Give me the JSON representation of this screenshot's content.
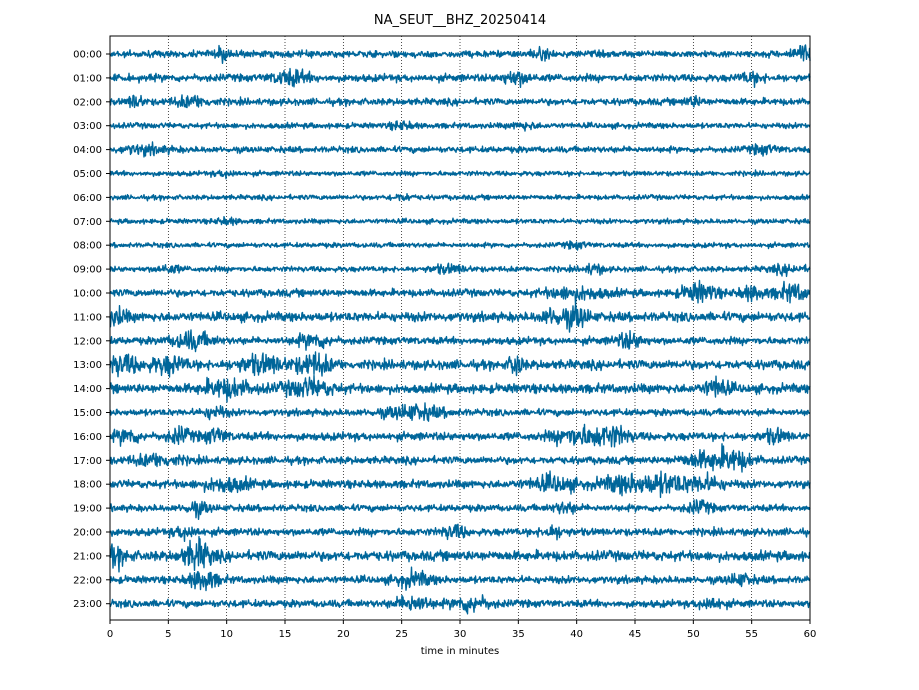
{
  "chart_data": {
    "type": "line",
    "title": "NA_SEUT__BHZ_20250414",
    "xlabel": "time in minutes",
    "ylabel": "",
    "xlim": [
      0,
      60
    ],
    "x_ticks": [
      0,
      5,
      10,
      15,
      20,
      25,
      30,
      35,
      40,
      45,
      50,
      55,
      60
    ],
    "grid": "vertical dotted lines every 5 minutes",
    "trace_color": "#00669a",
    "rows": [
      {
        "label": "00:00",
        "noise": 0.55,
        "events": [
          [
            9.8,
            0.8,
            1.6
          ],
          [
            59.3,
            1.0,
            2.2
          ],
          [
            37.0,
            1.0,
            1.2
          ]
        ]
      },
      {
        "label": "01:00",
        "noise": 0.6,
        "events": [
          [
            15.5,
            1.5,
            1.9
          ],
          [
            34.8,
            1.2,
            1.8
          ],
          [
            55.0,
            1.0,
            1.3
          ]
        ]
      },
      {
        "label": "02:00",
        "noise": 0.55,
        "events": [
          [
            2.2,
            0.6,
            2.0
          ],
          [
            7.0,
            1.5,
            1.6
          ],
          [
            50.0,
            0.8,
            1.3
          ]
        ]
      },
      {
        "label": "03:00",
        "noise": 0.45,
        "events": [
          [
            25.0,
            1.0,
            1.3
          ],
          [
            35.5,
            1.0,
            1.2
          ]
        ]
      },
      {
        "label": "04:00",
        "noise": 0.5,
        "events": [
          [
            3.0,
            2.0,
            1.3
          ],
          [
            56.0,
            1.2,
            1.3
          ]
        ]
      },
      {
        "label": "05:00",
        "noise": 0.4,
        "events": [
          [
            10.0,
            1.0,
            1.2
          ]
        ]
      },
      {
        "label": "06:00",
        "noise": 0.4,
        "events": [
          [
            25.0,
            1.0,
            1.2
          ]
        ]
      },
      {
        "label": "07:00",
        "noise": 0.4,
        "events": [
          [
            10.0,
            1.0,
            1.2
          ]
        ]
      },
      {
        "label": "08:00",
        "noise": 0.4,
        "events": [
          [
            40.0,
            1.0,
            1.2
          ]
        ]
      },
      {
        "label": "09:00",
        "noise": 0.45,
        "events": [
          [
            5.0,
            1.0,
            1.4
          ],
          [
            29.0,
            1.5,
            1.4
          ],
          [
            41.5,
            0.8,
            1.8
          ],
          [
            58.0,
            1.5,
            1.3
          ]
        ]
      },
      {
        "label": "10:00",
        "noise": 0.6,
        "events": [
          [
            40.0,
            2.5,
            1.6
          ],
          [
            50.5,
            1.5,
            2.4
          ],
          [
            58.5,
            1.5,
            2.1
          ],
          [
            55.0,
            1.0,
            1.8
          ]
        ]
      },
      {
        "label": "11:00",
        "noise": 0.75,
        "events": [
          [
            0.5,
            1.0,
            1.6
          ],
          [
            38.0,
            1.0,
            1.6
          ],
          [
            40.0,
            1.0,
            2.2
          ]
        ]
      },
      {
        "label": "12:00",
        "noise": 0.6,
        "events": [
          [
            7.0,
            1.6,
            2.3
          ],
          [
            17.5,
            1.5,
            1.7
          ],
          [
            44.5,
            1.2,
            1.9
          ]
        ]
      },
      {
        "label": "13:00",
        "noise": 0.75,
        "events": [
          [
            1.0,
            1.5,
            2.0
          ],
          [
            5.0,
            1.5,
            1.8
          ],
          [
            13.0,
            2.0,
            1.8
          ],
          [
            17.5,
            1.5,
            2.2
          ],
          [
            34.8,
            0.5,
            2.6
          ]
        ]
      },
      {
        "label": "14:00",
        "noise": 0.75,
        "events": [
          [
            10.0,
            2.0,
            1.9
          ],
          [
            17.0,
            2.0,
            1.8
          ],
          [
            52.0,
            1.0,
            2.0
          ]
        ]
      },
      {
        "label": "15:00",
        "noise": 0.55,
        "events": [
          [
            26.0,
            2.5,
            2.1
          ],
          [
            9.0,
            1.0,
            1.6
          ]
        ]
      },
      {
        "label": "16:00",
        "noise": 0.65,
        "events": [
          [
            1.5,
            1.0,
            1.8
          ],
          [
            6.0,
            1.0,
            1.8
          ],
          [
            9.0,
            1.0,
            1.7
          ],
          [
            40.0,
            2.0,
            2.2
          ],
          [
            43.0,
            1.5,
            2.3
          ],
          [
            57.0,
            1.0,
            1.6
          ]
        ]
      },
      {
        "label": "17:00",
        "noise": 0.6,
        "events": [
          [
            4.0,
            2.0,
            1.6
          ],
          [
            51.0,
            2.0,
            2.0
          ],
          [
            53.5,
            1.5,
            2.4
          ]
        ]
      },
      {
        "label": "18:00",
        "noise": 0.65,
        "events": [
          [
            10.0,
            2.0,
            1.6
          ],
          [
            38.0,
            2.0,
            1.8
          ],
          [
            44.0,
            2.0,
            2.0
          ],
          [
            47.5,
            2.0,
            2.4
          ],
          [
            51.0,
            1.5,
            1.8
          ]
        ]
      },
      {
        "label": "19:00",
        "noise": 0.55,
        "events": [
          [
            7.5,
            1.0,
            1.8
          ],
          [
            50.5,
            1.0,
            1.8
          ],
          [
            39.0,
            1.0,
            1.5
          ]
        ]
      },
      {
        "label": "20:00",
        "noise": 0.6,
        "events": [
          [
            6.5,
            1.0,
            1.6
          ],
          [
            29.5,
            1.0,
            1.7
          ],
          [
            38.0,
            1.0,
            1.5
          ]
        ]
      },
      {
        "label": "21:00",
        "noise": 0.8,
        "events": [
          [
            7.5,
            1.2,
            2.8
          ],
          [
            0.5,
            1.0,
            1.6
          ]
        ]
      },
      {
        "label": "22:00",
        "noise": 0.6,
        "events": [
          [
            8.0,
            1.2,
            2.6
          ],
          [
            26.0,
            1.5,
            1.9
          ],
          [
            54.0,
            1.0,
            1.5
          ]
        ]
      },
      {
        "label": "23:00",
        "noise": 0.6,
        "events": [
          [
            26.0,
            1.5,
            2.0
          ],
          [
            31.0,
            1.5,
            2.1
          ],
          [
            51.5,
            1.0,
            1.6
          ]
        ]
      }
    ]
  }
}
